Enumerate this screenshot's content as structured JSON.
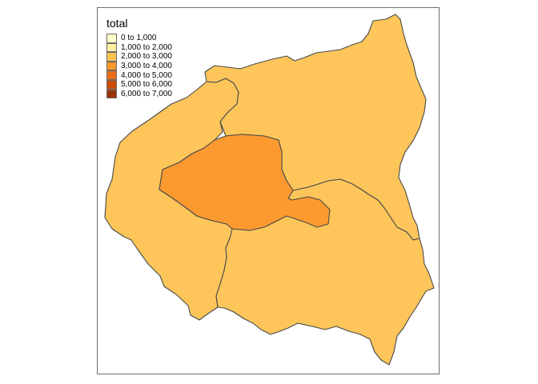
{
  "legend": {
    "title": "total",
    "items": [
      {
        "label": "0 to 1,000",
        "color": "#ffffcc"
      },
      {
        "label": "1,000 to 2,000",
        "color": "#ffeda0"
      },
      {
        "label": "2,000 to 3,000",
        "color": "#fec44f"
      },
      {
        "label": "3,000 to 4,000",
        "color": "#fe9929"
      },
      {
        "label": "4,000 to 5,000",
        "color": "#ec7014"
      },
      {
        "label": "5,000 to 6,000",
        "color": "#cc4c02"
      },
      {
        "label": "6,000 to 7,000",
        "color": "#993404"
      }
    ]
  },
  "regions": [
    {
      "id": "hauts-de-seine",
      "total_class": "2,000 to 3,000",
      "color": "#fdc55a"
    },
    {
      "id": "seine-saint-denis",
      "total_class": "2,000 to 3,000",
      "color": "#fdc55a"
    },
    {
      "id": "val-de-marne",
      "total_class": "2,000 to 3,000",
      "color": "#fdc55a"
    },
    {
      "id": "paris",
      "total_class": "3,000 to 4,000",
      "color": "#fd9a2f"
    }
  ]
}
